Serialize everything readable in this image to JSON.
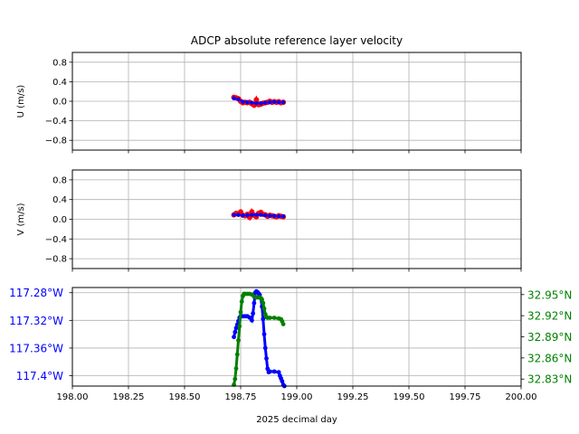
{
  "chart_data": [
    {
      "type": "scatter",
      "title": "ADCP absolute reference layer velocity",
      "ylabel": "U (m/s)",
      "xlim": [
        198.0,
        200.0
      ],
      "ylim": [
        -1.0,
        1.0
      ],
      "yticks": [
        -0.8,
        -0.4,
        0.0,
        0.4,
        0.8
      ],
      "ytick_labels": [
        "−0.8",
        "−0.4",
        "0.0",
        "0.4",
        "0.8"
      ],
      "grid": true,
      "series": [
        {
          "color": "#ff0000",
          "x": [
            198.72,
            198.73,
            198.74,
            198.75,
            198.76,
            198.77,
            198.78,
            198.79,
            198.8,
            198.81,
            198.82,
            198.83,
            198.84,
            198.85,
            198.86,
            198.87,
            198.88,
            198.89,
            198.9,
            198.91,
            198.92,
            198.93,
            198.94
          ],
          "y": [
            0.08,
            0.07,
            0.05,
            0.0,
            -0.03,
            -0.02,
            -0.03,
            -0.02,
            -0.05,
            -0.08,
            0.03,
            -0.07,
            -0.06,
            -0.04,
            -0.03,
            -0.02,
            0.0,
            -0.02,
            -0.01,
            -0.02,
            -0.01,
            -0.03,
            -0.02
          ]
        },
        {
          "color": "#0000ff",
          "x": [
            198.72,
            198.74,
            198.76,
            198.78,
            198.8,
            198.82,
            198.84,
            198.86,
            198.88,
            198.9,
            198.92,
            198.94
          ],
          "y": [
            0.06,
            0.04,
            -0.01,
            -0.02,
            -0.03,
            -0.04,
            -0.04,
            -0.03,
            -0.02,
            -0.01,
            -0.02,
            -0.02
          ]
        }
      ]
    },
    {
      "type": "scatter",
      "ylabel": "V (m/s)",
      "xlim": [
        198.0,
        200.0
      ],
      "ylim": [
        -1.0,
        1.0
      ],
      "yticks": [
        -0.8,
        -0.4,
        0.0,
        0.4,
        0.8
      ],
      "ytick_labels": [
        "−0.8",
        "−0.4",
        "0.0",
        "0.4",
        "0.8"
      ],
      "grid": true,
      "series": [
        {
          "color": "#ff0000",
          "x": [
            198.72,
            198.73,
            198.74,
            198.75,
            198.76,
            198.77,
            198.78,
            198.79,
            198.8,
            198.81,
            198.82,
            198.83,
            198.84,
            198.85,
            198.86,
            198.87,
            198.88,
            198.89,
            198.9,
            198.91,
            198.92,
            198.93,
            198.94
          ],
          "y": [
            0.09,
            0.12,
            0.1,
            0.15,
            0.08,
            0.07,
            0.1,
            0.04,
            0.15,
            0.08,
            0.05,
            0.12,
            0.14,
            0.1,
            0.09,
            0.06,
            0.08,
            0.07,
            0.06,
            0.05,
            0.07,
            0.06,
            0.05
          ]
        },
        {
          "color": "#0000ff",
          "x": [
            198.72,
            198.74,
            198.76,
            198.78,
            198.8,
            198.82,
            198.84,
            198.86,
            198.88,
            198.9,
            198.92,
            198.94
          ],
          "y": [
            0.09,
            0.09,
            0.08,
            0.08,
            0.09,
            0.09,
            0.09,
            0.08,
            0.07,
            0.07,
            0.06,
            0.06
          ]
        }
      ]
    },
    {
      "type": "scatter",
      "xlabel": "2025 decimal day",
      "xlim": [
        198.0,
        200.0
      ],
      "xticks": [
        198.0,
        198.25,
        198.5,
        198.75,
        199.0,
        199.25,
        199.5,
        199.75,
        200.0
      ],
      "xtick_labels": [
        "198.00",
        "198.25",
        "198.50",
        "198.75",
        "199.00",
        "199.25",
        "199.50",
        "199.75",
        "200.00"
      ],
      "grid": true,
      "left_axis": {
        "color": "#0000ff",
        "ylim": [
          -117.415,
          -117.2725
        ],
        "yticks": [
          -117.28,
          -117.32,
          -117.36,
          -117.4
        ],
        "ytick_labels": [
          "117.28°W",
          "117.32°W",
          "117.36°W",
          "117.4°W"
        ]
      },
      "right_axis": {
        "color": "#008000",
        "ylim": [
          32.82,
          32.96
        ],
        "yticks": [
          32.83,
          32.86,
          32.89,
          32.92,
          32.95
        ],
        "ytick_labels": [
          "32.83°N",
          "32.86°N",
          "32.89°N",
          "32.92°N",
          "32.95°N"
        ]
      },
      "series": [
        {
          "axis": "left",
          "color": "#0000ff",
          "x": [
            198.72,
            198.725,
            198.73,
            198.735,
            198.74,
            198.745,
            198.75,
            198.755,
            198.76,
            198.77,
            198.78,
            198.79,
            198.8,
            198.805,
            198.81,
            198.815,
            198.82,
            198.825,
            198.83,
            198.835,
            198.84,
            198.845,
            198.85,
            198.855,
            198.86,
            198.865,
            198.87,
            198.875,
            198.88,
            198.9,
            198.92,
            198.925,
            198.93,
            198.935,
            198.94,
            198.945
          ],
          "y": [
            -117.344,
            -117.337,
            -117.331,
            -117.326,
            -117.321,
            -117.316,
            -117.314,
            -117.314,
            -117.314,
            -117.314,
            -117.314,
            -117.316,
            -117.32,
            -117.31,
            -117.295,
            -117.28,
            -117.278,
            -117.279,
            -117.281,
            -117.283,
            -117.288,
            -117.3,
            -117.318,
            -117.34,
            -117.36,
            -117.375,
            -117.39,
            -117.395,
            -117.394,
            -117.394,
            -117.395,
            -117.4,
            -117.404,
            -117.408,
            -117.413,
            -117.415
          ]
        },
        {
          "axis": "right",
          "color": "#008000",
          "x": [
            198.72,
            198.725,
            198.73,
            198.735,
            198.74,
            198.745,
            198.75,
            198.755,
            198.76,
            198.765,
            198.77,
            198.78,
            198.79,
            198.8,
            198.81,
            198.82,
            198.825,
            198.83,
            198.835,
            198.84,
            198.845,
            198.85,
            198.855,
            198.86,
            198.865,
            198.87,
            198.88,
            198.9,
            198.92,
            198.93,
            198.935,
            198.94
          ],
          "y": [
            32.822,
            32.83,
            32.845,
            32.865,
            32.885,
            32.905,
            32.925,
            32.94,
            32.948,
            32.951,
            32.951,
            32.951,
            32.951,
            32.95,
            32.947,
            32.946,
            32.946,
            32.946,
            32.946,
            32.945,
            32.943,
            32.938,
            32.93,
            32.922,
            32.918,
            32.917,
            32.917,
            32.917,
            32.916,
            32.915,
            32.912,
            32.908
          ]
        }
      ]
    }
  ]
}
